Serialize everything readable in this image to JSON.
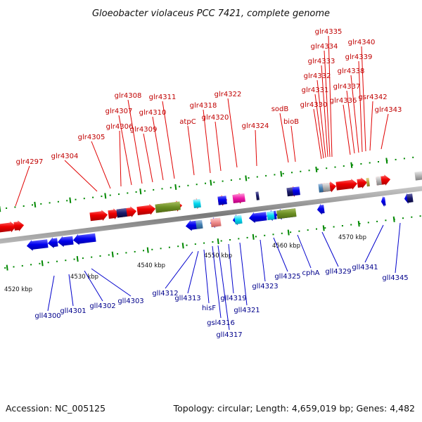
{
  "title": "Gloeobacter violaceus PCC 7421, complete genome",
  "footer": {
    "accession": "Accession: NC_005125",
    "summary": "Topology: circular; Length: 4,659,019 bp; Genes: 4,482"
  },
  "scale_labels": [
    "4520 kbp",
    "4530 kbp",
    "4540 kbp",
    "4550 kbp",
    "4560 kbp",
    "4570 kbp"
  ],
  "top_labels": [
    "glr4297",
    "glr4304",
    "glr4305",
    "glr4306",
    "glr4307",
    "glr4308",
    "glr4309",
    "glr4310",
    "glr4311",
    "atpC",
    "glr4318",
    "glr4320",
    "glr4322",
    "glr4324",
    "sodB",
    "bioB",
    "glr4330",
    "glr4331",
    "glr4332",
    "glr4333",
    "glr4334",
    "glr4335",
    "glr4336",
    "glr4337",
    "glr4338",
    "glr4339",
    "glr4340",
    "gsr4342",
    "glr4343"
  ],
  "bottom_labels": [
    "gll4300",
    "gll4301",
    "gll4302",
    "gll4303",
    "gll4312",
    "gll4313",
    "hisF",
    "gsl4316",
    "gll4317",
    "gll4319",
    "gll4321",
    "gll4323",
    "gll4325",
    "cphA",
    "gll4329",
    "gll4341",
    "gll4345"
  ],
  "colors": {
    "forward_gene": "#ee0000",
    "reverse_gene": "#0000ee",
    "backbone": "#888888",
    "tick": "#008800",
    "top_label": "#c00000",
    "bottom_label": "#00008b"
  }
}
